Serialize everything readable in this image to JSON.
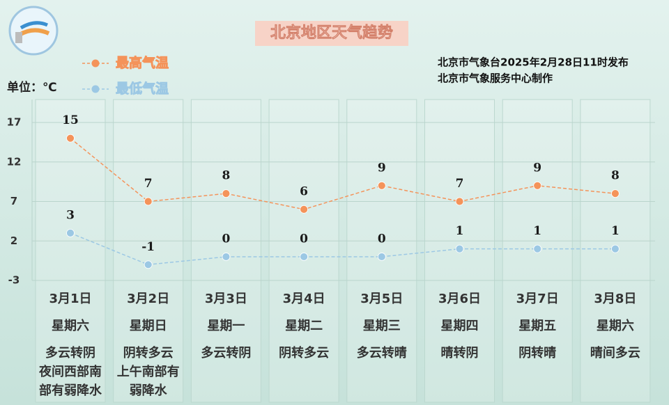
{
  "chart_data": {
    "type": "line",
    "title": "北京地区天气趋势",
    "unit_label": "单位：℃",
    "issuer": [
      "北京市气象台2025年2月28日11时发布",
      "北京市气象服务中心制作"
    ],
    "categories": [
      "3月1日",
      "3月2日",
      "3月3日",
      "3月4日",
      "3月5日",
      "3月6日",
      "3月7日",
      "3月8日"
    ],
    "weekdays": [
      "星期六",
      "星期日",
      "星期一",
      "星期二",
      "星期三",
      "星期四",
      "星期五",
      "星期六"
    ],
    "weather": [
      [
        "多云转阴",
        "夜间西部南",
        "部有弱降水"
      ],
      [
        "阴转多云",
        "上午南部有",
        "弱降水"
      ],
      [
        "多云转阴"
      ],
      [
        "阴转多云"
      ],
      [
        "多云转晴"
      ],
      [
        "晴转阴"
      ],
      [
        "阴转晴"
      ],
      [
        "晴间多云"
      ]
    ],
    "series": [
      {
        "name": "最高气温",
        "color": "#f4935a",
        "values": [
          15,
          7,
          8,
          6,
          9,
          7,
          9,
          8
        ]
      },
      {
        "name": "最低气温",
        "color": "#9cc8e4",
        "values": [
          3,
          -1,
          0,
          0,
          0,
          1,
          1,
          1
        ]
      }
    ],
    "ylim": [
      -3,
      17
    ],
    "yticks": [
      -3,
      2,
      7,
      12,
      17
    ],
    "grid": true
  }
}
